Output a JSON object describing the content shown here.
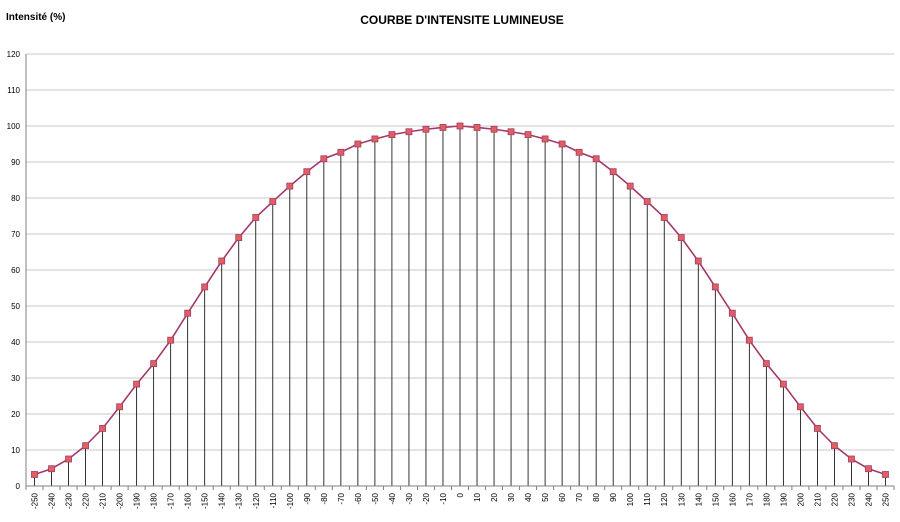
{
  "chart_data": {
    "type": "line",
    "title": "COURBE D'INTENSITE LUMINEUSE",
    "ylabel": "Intensité (%)",
    "xlabel": "",
    "ylim": [
      0,
      120
    ],
    "y_ticks": [
      0,
      10,
      20,
      30,
      40,
      50,
      60,
      70,
      80,
      90,
      100,
      110,
      120
    ],
    "grid": true,
    "drop_lines": true,
    "x": [
      -250,
      -240,
      -230,
      -220,
      -210,
      -200,
      -190,
      -180,
      -170,
      -160,
      -150,
      -140,
      -130,
      -120,
      -110,
      -100,
      -90,
      -80,
      -70,
      -60,
      -50,
      -40,
      -30,
      -20,
      -10,
      0,
      10,
      20,
      30,
      40,
      50,
      60,
      70,
      80,
      90,
      100,
      110,
      120,
      130,
      140,
      150,
      160,
      170,
      180,
      190,
      200,
      210,
      220,
      230,
      240,
      250
    ],
    "series": [
      {
        "color": "#a33a6a",
        "marker_color": "#e06060",
        "values": [
          3.2,
          4.8,
          7.5,
          11.2,
          16,
          22,
          28.3,
          34,
          40.5,
          48,
          55.3,
          62.5,
          69,
          74.6,
          79,
          83.3,
          87.3,
          90.9,
          92.7,
          95,
          96.4,
          97.6,
          98.4,
          99.1,
          99.6,
          100,
          99.6,
          99.1,
          98.4,
          97.6,
          96.4,
          95,
          92.7,
          90.9,
          87.3,
          83.3,
          79,
          74.6,
          69,
          62.5,
          55.3,
          48,
          40.5,
          34,
          28.3,
          22,
          16,
          11.2,
          7.5,
          4.8,
          3.2
        ]
      }
    ]
  }
}
